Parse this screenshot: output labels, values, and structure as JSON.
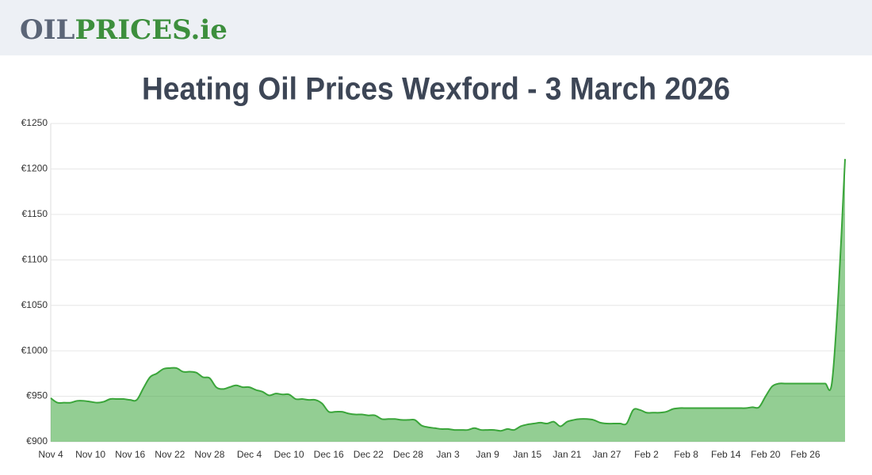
{
  "header": {
    "logo_parts": [
      "OIL",
      "PRICES.ie"
    ]
  },
  "chart_data": {
    "type": "area",
    "title": "Heating Oil Prices Wexford - 3 March 2026",
    "categories": [
      "Nov 4",
      null,
      null,
      null,
      null,
      null,
      "Nov 10",
      null,
      null,
      null,
      null,
      null,
      "Nov 16",
      null,
      null,
      null,
      null,
      null,
      "Nov 22",
      null,
      null,
      null,
      null,
      null,
      "Nov 28",
      null,
      null,
      null,
      null,
      null,
      "Dec 4",
      null,
      null,
      null,
      null,
      null,
      "Dec 10",
      null,
      null,
      null,
      null,
      null,
      "Dec 16",
      null,
      null,
      null,
      null,
      null,
      "Dec 22",
      null,
      null,
      null,
      null,
      null,
      "Dec 28",
      null,
      null,
      null,
      null,
      null,
      "Jan 3",
      null,
      null,
      null,
      null,
      null,
      "Jan 9",
      null,
      null,
      null,
      null,
      null,
      "Jan 15",
      null,
      null,
      null,
      null,
      null,
      "Jan 21",
      null,
      null,
      null,
      null,
      null,
      "Jan 27",
      null,
      null,
      null,
      null,
      null,
      "Feb 2",
      null,
      null,
      null,
      null,
      null,
      "Feb 8",
      null,
      null,
      null,
      null,
      null,
      "Feb 14",
      null,
      null,
      null,
      null,
      null,
      "Feb 20",
      null,
      null,
      null,
      null,
      null,
      "Feb 26",
      null,
      null,
      null,
      null,
      null,
      null
    ],
    "series": [
      {
        "color": "#3aa53a",
        "values": [
          948,
          943,
          943,
          943,
          945,
          945,
          944,
          943,
          944,
          947,
          947,
          947,
          946,
          946,
          959,
          971,
          975,
          980,
          981,
          981,
          977,
          977,
          976,
          971,
          970,
          960,
          958,
          960,
          962,
          960,
          960,
          957,
          955,
          951,
          953,
          952,
          952,
          947,
          947,
          946,
          946,
          942,
          933,
          933,
          933,
          931,
          930,
          930,
          929,
          929,
          925,
          925,
          925,
          924,
          924,
          924,
          918,
          916,
          915,
          914,
          914,
          913,
          913,
          913,
          915,
          913,
          913,
          913,
          912,
          914,
          913,
          917,
          919,
          920,
          921,
          920,
          922,
          917,
          922,
          924,
          925,
          925,
          924,
          921,
          920,
          920,
          920,
          920,
          935,
          935,
          932,
          932,
          932,
          933,
          936,
          937,
          937,
          937,
          937,
          937,
          937,
          937,
          937,
          937,
          937,
          937,
          938,
          938,
          950,
          961,
          964,
          964,
          964,
          964,
          964,
          964,
          964,
          964,
          964,
          1064,
          1211
        ]
      }
    ],
    "ylim": [
      900,
      1250
    ],
    "yticks": [
      {
        "value": 900,
        "label": "€900"
      },
      {
        "value": 950,
        "label": "€950"
      },
      {
        "value": 1000,
        "label": "€1000"
      },
      {
        "value": 1050,
        "label": "€1050"
      },
      {
        "value": 1100,
        "label": "€1100"
      },
      {
        "value": 1150,
        "label": "€1150"
      },
      {
        "value": 1200,
        "label": "€1200"
      },
      {
        "value": 1250,
        "label": "€1250"
      }
    ],
    "grid": true
  }
}
